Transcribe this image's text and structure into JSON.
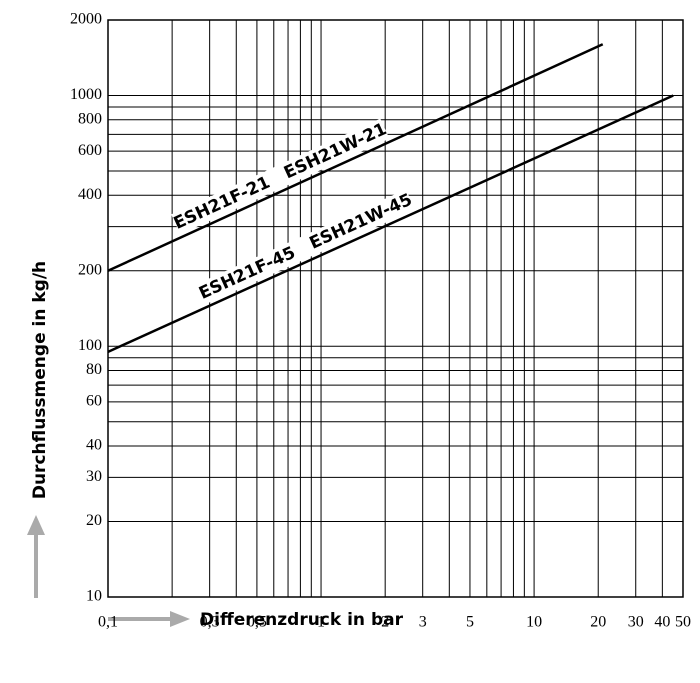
{
  "chart_data": {
    "type": "line",
    "xlabel": "Differenzdruck in bar",
    "ylabel": "Durchflussmenge in kg/h",
    "xscale": "log",
    "yscale": "log",
    "grid": true,
    "xlim": [
      0.1,
      50
    ],
    "ylim": [
      10,
      2000
    ],
    "xticks": [
      {
        "value": 0.1,
        "label": "0,1"
      },
      {
        "value": 0.3,
        "label": "0,3"
      },
      {
        "value": 0.5,
        "label": "0,5"
      },
      1,
      2,
      3,
      5,
      10,
      20,
      30,
      40,
      50
    ],
    "xminor": [
      0.2,
      0.4,
      0.6,
      0.7,
      0.8,
      0.9,
      4,
      6,
      7,
      8,
      9
    ],
    "yticks": [
      10,
      20,
      30,
      40,
      60,
      80,
      100,
      200,
      400,
      600,
      800,
      1000,
      2000
    ],
    "yminor": [
      50,
      70,
      90,
      300,
      500,
      700,
      900
    ],
    "series": [
      {
        "name": "ESH21F-21   ESH21W-21",
        "color": "#000000",
        "x": [
          0.1,
          21
        ],
        "values": [
          200,
          1600
        ]
      },
      {
        "name": "ESH21F-45   ESH21W-45",
        "color": "#000000",
        "x": [
          0.1,
          45
        ],
        "values": [
          95,
          1000
        ]
      }
    ]
  }
}
